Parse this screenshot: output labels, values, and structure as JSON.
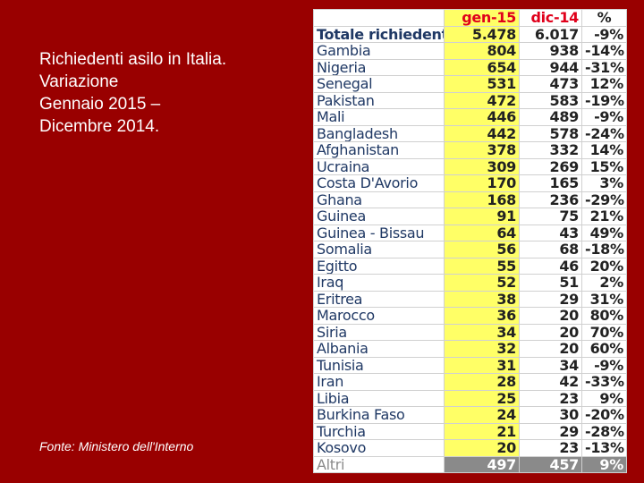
{
  "slide": {
    "title_lines": [
      "Richiedenti asilo in Italia.",
      "Variazione",
      "Gennaio 2015 –",
      "Dicembre 2014."
    ],
    "source": "Fonte: Ministero dell'Interno"
  },
  "table": {
    "header": [
      "gen-15",
      "dic-14",
      "%"
    ],
    "rows": [
      [
        "Totale richiedenti",
        "5.478",
        "6.017",
        "-9%"
      ],
      [
        "Gambia",
        "804",
        "938",
        "-14%"
      ],
      [
        "Nigeria",
        "654",
        "944",
        "-31%"
      ],
      [
        "Senegal",
        "531",
        "473",
        "12%"
      ],
      [
        "Pakistan",
        "472",
        "583",
        "-19%"
      ],
      [
        "Mali",
        "446",
        "489",
        "-9%"
      ],
      [
        "Bangladesh",
        "442",
        "578",
        "-24%"
      ],
      [
        "Afghanistan",
        "378",
        "332",
        "14%"
      ],
      [
        "Ucraina",
        "309",
        "269",
        "15%"
      ],
      [
        "Costa D'Avorio",
        "170",
        "165",
        "3%"
      ],
      [
        "Ghana",
        "168",
        "236",
        "-29%"
      ],
      [
        "Guinea",
        "91",
        "75",
        "21%"
      ],
      [
        "Guinea - Bissau",
        "64",
        "43",
        "49%"
      ],
      [
        "Somalia",
        "56",
        "68",
        "-18%"
      ],
      [
        "Egitto",
        "55",
        "46",
        "20%"
      ],
      [
        "Iraq",
        "52",
        "51",
        "2%"
      ],
      [
        "Eritrea",
        "38",
        "29",
        "31%"
      ],
      [
        "Marocco",
        "36",
        "20",
        "80%"
      ],
      [
        "Siria",
        "34",
        "20",
        "70%"
      ],
      [
        "Albania",
        "32",
        "20",
        "60%"
      ],
      [
        "Tunisia",
        "31",
        "34",
        "-9%"
      ],
      [
        "Iran",
        "28",
        "42",
        "-33%"
      ],
      [
        "Libia",
        "25",
        "23",
        "9%"
      ],
      [
        "Burkina Faso",
        "24",
        "30",
        "-20%"
      ],
      [
        "Turchia",
        "21",
        "29",
        "-28%"
      ],
      [
        "Kosovo",
        "20",
        "23",
        "-13%"
      ],
      [
        "Altri",
        "497",
        "457",
        "9%"
      ]
    ]
  }
}
